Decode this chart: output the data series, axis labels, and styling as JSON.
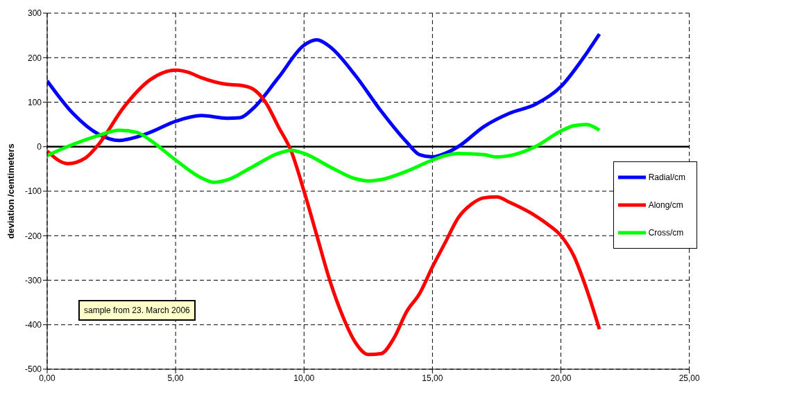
{
  "chart_data": {
    "type": "line",
    "ylabel": "deviation /centimeters",
    "xlim": [
      0,
      25
    ],
    "xticks": [
      {
        "value": 0,
        "label": "0,00"
      },
      {
        "value": 5,
        "label": "5,00"
      },
      {
        "value": 10,
        "label": "10,00"
      },
      {
        "value": 15,
        "label": "15,00"
      },
      {
        "value": 20,
        "label": "20,00"
      },
      {
        "value": 25,
        "label": "25,00"
      }
    ],
    "ylim": [
      -500,
      300
    ],
    "yticks": [
      -500,
      -400,
      -300,
      -200,
      -100,
      0,
      100,
      200,
      300
    ],
    "grid": true,
    "legend": "right",
    "marker": "none",
    "line_style": "solid",
    "ref_lines": [
      {
        "axis": "y",
        "value": 0,
        "color": "#000000"
      }
    ],
    "annotations": [
      "sample from 23. March 2006"
    ],
    "series": [
      {
        "name": "Radial/cm",
        "color": "#0000ff",
        "x": [
          0,
          1,
          2,
          2.8,
          3.5,
          4,
          5,
          6,
          7,
          7.5,
          8,
          9,
          10,
          10.5,
          11,
          12,
          13,
          14,
          14.5,
          15,
          15.5,
          16,
          17,
          18,
          19,
          20,
          21,
          21.5
        ],
        "values": [
          148,
          75,
          28,
          14,
          22,
          32,
          57,
          70,
          64,
          65,
          85,
          155,
          228,
          240,
          225,
          160,
          80,
          10,
          -18,
          -23,
          -15,
          0,
          45,
          75,
          95,
          135,
          210,
          253
        ]
      },
      {
        "name": "Along/cm",
        "color": "#ff0000",
        "x": [
          0,
          0.8,
          1.5,
          2,
          3,
          4,
          5,
          5.5,
          6,
          7,
          7.5,
          8,
          8.5,
          9,
          9.5,
          10,
          10.5,
          11,
          11.5,
          12,
          12.5,
          13,
          13.5,
          14,
          14.5,
          15,
          15.5,
          16,
          16.5,
          17,
          17.5,
          18,
          19,
          19.5,
          20,
          20.5,
          21,
          21.5
        ],
        "values": [
          -10,
          -38,
          -25,
          5,
          90,
          150,
          172,
          167,
          155,
          140,
          138,
          130,
          100,
          45,
          -10,
          -100,
          -200,
          -300,
          -380,
          -440,
          -467,
          -465,
          -430,
          -370,
          -330,
          -270,
          -215,
          -160,
          -130,
          -115,
          -113,
          -125,
          -155,
          -175,
          -200,
          -245,
          -320,
          -410
        ]
      },
      {
        "name": "Cross/cm",
        "color": "#00ff00",
        "x": [
          0,
          1,
          2,
          2.8,
          3.5,
          4,
          5,
          6,
          6.5,
          7,
          8,
          9,
          9.5,
          10,
          11,
          12,
          12.5,
          13,
          14,
          15,
          15.5,
          16,
          17,
          17.5,
          18,
          19,
          20,
          20.5,
          21,
          21.5
        ],
        "values": [
          -20,
          5,
          25,
          37,
          32,
          15,
          -30,
          -70,
          -80,
          -75,
          -45,
          -15,
          -8,
          -15,
          -45,
          -72,
          -77,
          -74,
          -55,
          -30,
          -20,
          -15,
          -18,
          -23,
          -20,
          0,
          35,
          47,
          50,
          37
        ]
      }
    ]
  }
}
